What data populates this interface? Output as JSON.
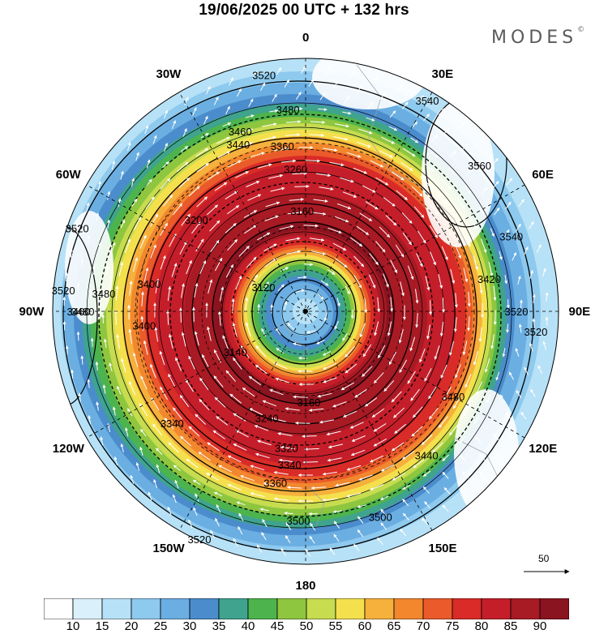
{
  "title": "19/06/2025  00 UTC  + 132 hrs",
  "brand": {
    "name": "MODES",
    "mark": "©"
  },
  "longitude_labels": [
    {
      "text": "0",
      "deg": 0
    },
    {
      "text": "30E",
      "deg": 30
    },
    {
      "text": "60E",
      "deg": 60
    },
    {
      "text": "90E",
      "deg": 90
    },
    {
      "text": "120E",
      "deg": 120
    },
    {
      "text": "150E",
      "deg": 150
    },
    {
      "text": "180",
      "deg": 180
    },
    {
      "text": "150W",
      "deg": 210
    },
    {
      "text": "120W",
      "deg": 240
    },
    {
      "text": "90W",
      "deg": 270
    },
    {
      "text": "60W",
      "deg": 300
    },
    {
      "text": "30W",
      "deg": 330
    }
  ],
  "colorbar": {
    "levels": [
      "10",
      "15",
      "20",
      "25",
      "30",
      "35",
      "40",
      "45",
      "50",
      "55",
      "60",
      "65",
      "70",
      "75",
      "80",
      "85",
      "90"
    ],
    "colors": [
      "#ffffff",
      "#daf0fb",
      "#b7e1f6",
      "#8ec9ee",
      "#6aaee2",
      "#4b8ccc",
      "#3fa38e",
      "#4db34d",
      "#8ec63f",
      "#c7dc4f",
      "#f4e04d",
      "#f6b13c",
      "#f2872e",
      "#ea5a2a",
      "#d92b27",
      "#c41e2a",
      "#a81a24",
      "#8a1420"
    ]
  },
  "contour_labels": [
    {
      "text": "3520"
    },
    {
      "text": "3480"
    },
    {
      "text": "3460"
    },
    {
      "text": "3440"
    },
    {
      "text": "3360"
    },
    {
      "text": "3260"
    },
    {
      "text": "3160"
    },
    {
      "text": "3120"
    },
    {
      "text": "3200"
    },
    {
      "text": "3140"
    },
    {
      "text": "3160"
    },
    {
      "text": "3240"
    },
    {
      "text": "3320"
    },
    {
      "text": "3340"
    },
    {
      "text": "3360"
    },
    {
      "text": "3400"
    },
    {
      "text": "3480"
    },
    {
      "text": "3460"
    },
    {
      "text": "3520"
    },
    {
      "text": "3500"
    },
    {
      "text": "3500"
    },
    {
      "text": "3520"
    },
    {
      "text": "3560"
    },
    {
      "text": "3540"
    },
    {
      "text": "3520"
    },
    {
      "text": "3520"
    },
    {
      "text": "3480"
    },
    {
      "text": "3440"
    },
    {
      "text": "3420"
    },
    {
      "text": "3400"
    },
    {
      "text": "3340"
    },
    {
      "text": "3480"
    },
    {
      "text": "3520"
    },
    {
      "text": "3540"
    }
  ],
  "reference_vector": {
    "label": "50"
  }
}
